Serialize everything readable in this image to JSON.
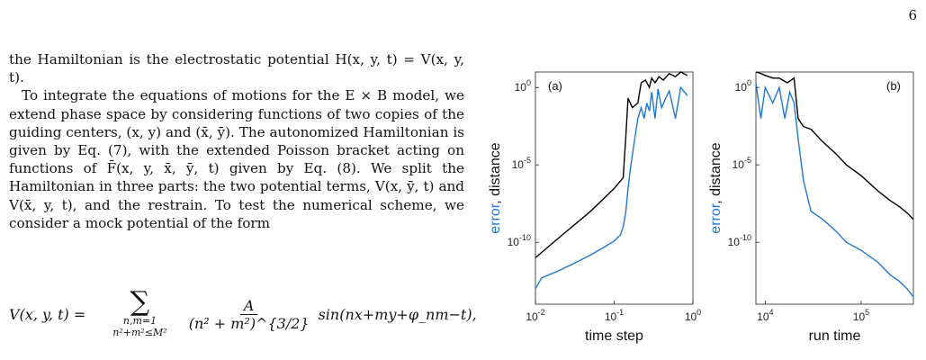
{
  "page_number": "6",
  "body": {
    "para1": "the Hamiltonian is the electrostatic potential H(x, y, t) = V(x, y, t).",
    "para2": "To integrate the equations of motions for the E × B model, we extend phase space by considering functions of two copies of the guiding centers, (x, y) and (x̄, ȳ). The autonomized Hamiltonian is given by Eq. (7), with the extended Poisson bracket acting on functions of F̄(x, y, x̄, ȳ, t) given by Eq. (8). We split the Hamiltonian in three parts: the two potential terms, V(x, ȳ, t) and V(x̄, y, t), and the restrain. To test the numerical scheme, we consider a mock potential of the form"
  },
  "equation": {
    "lhs": "V(x, y, t) =",
    "sum_symbol": "∑",
    "lower_limit_1": "n,m=1",
    "lower_limit_2": "n²+m²≤M²",
    "numerator": "A",
    "denominator": "(n² + m²)^{3/2}",
    "rhs": "sin(nx+my+φ_nm−t),"
  },
  "chart_data": [
    {
      "type": "line",
      "panel_label": "(a)",
      "xlabel": "time step",
      "ylabel_colored": "error",
      "ylabel_rest": ", distance",
      "xscale": "log",
      "yscale": "log",
      "xlim": [
        0.01,
        1
      ],
      "ylim": [
        1e-14,
        10.0
      ],
      "xticks": [
        {
          "v": 0.01,
          "label": "10^-2"
        },
        {
          "v": 0.1,
          "label": "10^-1"
        },
        {
          "v": 1,
          "label": "10^0"
        }
      ],
      "yticks": [
        {
          "v": 1,
          "label": "10^0"
        },
        {
          "v": 1e-05,
          "label": "10^-5"
        },
        {
          "v": 1e-10,
          "label": "10^-10"
        }
      ],
      "series": [
        {
          "color": "#000000",
          "x": [
            0.01,
            0.02,
            0.05,
            0.1,
            0.13,
            0.14,
            0.15,
            0.17,
            0.2,
            0.22,
            0.25,
            0.28,
            0.3,
            0.33,
            0.37,
            0.42,
            0.5,
            0.6,
            0.7,
            0.85
          ],
          "y": [
            1e-11,
            2e-10,
            1e-08,
            3e-07,
            1.5e-06,
            0.0005,
            0.2,
            0.05,
            0.1,
            2.0,
            3.0,
            1.0,
            4.0,
            2.0,
            5.0,
            3.0,
            8.0,
            5.0,
            10.0,
            6.0
          ]
        },
        {
          "color": "#1f77d0",
          "x": [
            0.01,
            0.012,
            0.02,
            0.03,
            0.05,
            0.08,
            0.1,
            0.12,
            0.13,
            0.14,
            0.15,
            0.16,
            0.18,
            0.2,
            0.22,
            0.24,
            0.26,
            0.28,
            0.3,
            0.33,
            0.36,
            0.4,
            0.45,
            0.5,
            0.6,
            0.7,
            0.85
          ],
          "y": [
            1e-13,
            5e-13,
            1.5e-12,
            4e-12,
            1.5e-11,
            6e-11,
            1.2e-10,
            3e-10,
            1e-09,
            8e-09,
            3e-07,
            5e-06,
            0.0003,
            0.01,
            0.05,
            0.01,
            0.1,
            0.03,
            0.5,
            0.01,
            0.8,
            0.05,
            0.2,
            0.6,
            0.01,
            1.0,
            0.3
          ]
        }
      ]
    },
    {
      "type": "line",
      "panel_label": "(b)",
      "xlabel": "run time",
      "ylabel_colored": "error",
      "ylabel_rest": ", distance",
      "xscale": "log",
      "yscale": "log",
      "xlim": [
        8000,
        350000
      ],
      "ylim": [
        1e-14,
        10.0
      ],
      "xticks": [
        {
          "v": 10000,
          "label": "10^4"
        },
        {
          "v": 100000,
          "label": "10^5"
        }
      ],
      "yticks": [
        {
          "v": 1,
          "label": "10^0"
        },
        {
          "v": 1e-05,
          "label": "10^-5"
        },
        {
          "v": 1e-10,
          "label": "10^-10"
        }
      ],
      "series": [
        {
          "color": "#000000",
          "x": [
            8000,
            9000,
            10000,
            12000,
            14000,
            17000,
            20000,
            22000,
            25000,
            30000,
            40000,
            55000,
            70000,
            100000,
            150000,
            200000,
            250000,
            300000,
            350000
          ],
          "y": [
            10.0,
            8.0,
            6.0,
            4.0,
            4.0,
            2.0,
            4.0,
            0.01,
            0.003,
            0.002,
            0.0003,
            5e-05,
            1e-05,
            2e-06,
            2e-07,
            5e-08,
            2e-08,
            8e-09,
            3e-09
          ]
        },
        {
          "color": "#1f77d0",
          "x": [
            8000,
            9000,
            10000,
            12000,
            14000,
            16000,
            18000,
            20000,
            22000,
            25000,
            30000,
            40000,
            55000,
            70000,
            100000,
            150000,
            200000,
            250000,
            300000,
            350000
          ],
          "y": [
            2.0,
            0.01,
            1.0,
            0.1,
            1.0,
            0.01,
            0.5,
            0.1,
            0.0005,
            1e-06,
            1e-08,
            3e-09,
            5e-10,
            1e-10,
            3e-11,
            5e-12,
            8e-13,
            3e-13,
            1e-13,
            3e-14
          ]
        }
      ]
    }
  ]
}
